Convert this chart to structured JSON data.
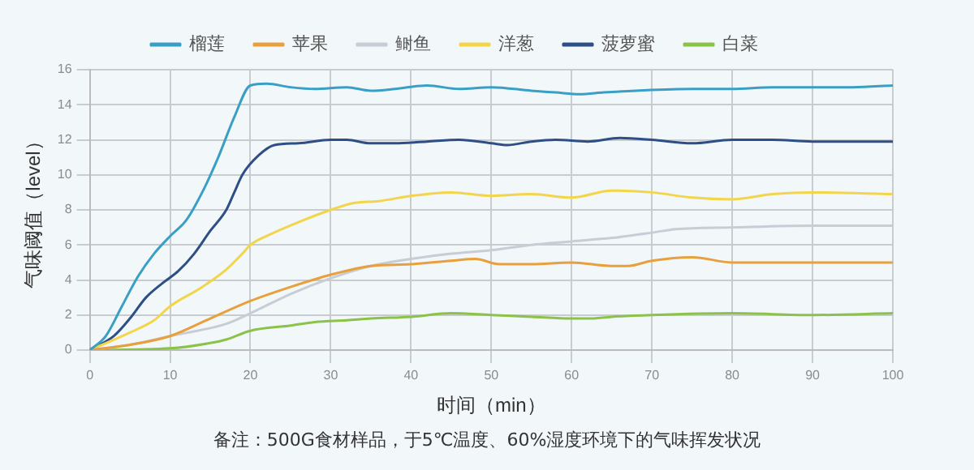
{
  "chart_data": {
    "type": "line",
    "xlabel": "时间（min）",
    "ylabel": "气味阈值（level）",
    "xlim": [
      0,
      100
    ],
    "xticks": [
      0,
      10,
      20,
      30,
      40,
      50,
      60,
      70,
      80,
      90,
      100
    ],
    "ylim": [
      0,
      16
    ],
    "yticks": [
      0,
      2,
      4,
      6,
      8,
      10,
      12,
      14,
      16
    ],
    "grid": true,
    "legend": "top",
    "marker": "none",
    "line_style": "solid",
    "annotations": [
      "备注：500G食材样品，于5℃温度、60%湿度环境下的气味挥发状况"
    ],
    "series": [
      {
        "name": "榴莲",
        "color": "#3a9fc4",
        "x": [
          0,
          2,
          4,
          6,
          8,
          10,
          12,
          14,
          16,
          18,
          20,
          22,
          25,
          28,
          32,
          35,
          38,
          42,
          46,
          50,
          55,
          58,
          61,
          64,
          68,
          75,
          80,
          85,
          90,
          95,
          100
        ],
        "values": [
          0,
          0.8,
          2.5,
          4.2,
          5.5,
          6.5,
          7.4,
          9,
          11,
          13.3,
          15.1,
          15.2,
          15,
          14.9,
          15,
          14.8,
          14.9,
          15.1,
          14.9,
          15,
          14.8,
          14.7,
          14.6,
          14.7,
          14.8,
          14.9,
          14.9,
          15,
          15,
          15,
          15.1
        ]
      },
      {
        "name": "苹果",
        "color": "#e8a03d",
        "x": [
          0,
          5,
          10,
          15,
          20,
          25,
          30,
          35,
          40,
          45,
          48,
          51,
          55,
          60,
          65,
          67,
          70,
          75,
          80,
          85,
          90,
          100
        ],
        "values": [
          0,
          0.3,
          0.8,
          1.8,
          2.8,
          3.6,
          4.3,
          4.8,
          4.9,
          5.1,
          5.2,
          4.9,
          4.9,
          5,
          4.8,
          4.8,
          5.1,
          5.3,
          5,
          5,
          5,
          5
        ]
      },
      {
        "name": "鲥鱼",
        "color": "#c8ccd4",
        "x": [
          0,
          5,
          10,
          17,
          20,
          25,
          30,
          35,
          40,
          45,
          50,
          55,
          60,
          65,
          70,
          73,
          80,
          90,
          100
        ],
        "values": [
          0,
          0.3,
          0.8,
          1.5,
          2.1,
          3.2,
          4.1,
          4.8,
          5.2,
          5.5,
          5.7,
          6,
          6.2,
          6.4,
          6.7,
          6.9,
          7,
          7.1,
          7.1
        ]
      },
      {
        "name": "洋葱",
        "color": "#f2d54a",
        "x": [
          0,
          5,
          8,
          10,
          14,
          17,
          19,
          20,
          22,
          26,
          30,
          33,
          36,
          40,
          45,
          50,
          55,
          60,
          65,
          70,
          75,
          80,
          85,
          90,
          100
        ],
        "values": [
          0,
          1,
          1.7,
          2.5,
          3.6,
          4.6,
          5.5,
          6,
          6.5,
          7.3,
          8,
          8.4,
          8.5,
          8.8,
          9,
          8.8,
          8.9,
          8.7,
          9.1,
          9,
          8.7,
          8.6,
          8.9,
          9,
          8.9
        ]
      },
      {
        "name": "菠萝蜜",
        "color": "#2e4f86",
        "x": [
          0,
          3,
          5,
          7,
          9,
          11,
          13,
          15,
          17,
          18,
          19,
          21,
          23,
          26,
          30,
          32,
          35,
          38,
          42,
          46,
          50,
          52,
          55,
          58,
          62,
          66,
          70,
          75,
          80,
          85,
          90,
          100
        ],
        "values": [
          0,
          0.8,
          1.8,
          3,
          3.8,
          4.5,
          5.5,
          6.8,
          8,
          9,
          10,
          11.1,
          11.7,
          11.8,
          12,
          12,
          11.8,
          11.8,
          11.9,
          12,
          11.8,
          11.7,
          11.9,
          12,
          11.9,
          12.1,
          12,
          11.8,
          12,
          12,
          11.9,
          11.9
        ]
      },
      {
        "name": "白菜",
        "color": "#8bc34a",
        "x": [
          0,
          10,
          15,
          17,
          20,
          25,
          28,
          32,
          35,
          40,
          45,
          50,
          55,
          60,
          62,
          65,
          70,
          80,
          90,
          100
        ],
        "values": [
          0,
          0.1,
          0.4,
          0.6,
          1.1,
          1.4,
          1.6,
          1.7,
          1.8,
          1.9,
          2.1,
          2,
          1.9,
          1.8,
          1.8,
          1.9,
          2,
          2.1,
          2,
          2.1
        ]
      }
    ]
  }
}
